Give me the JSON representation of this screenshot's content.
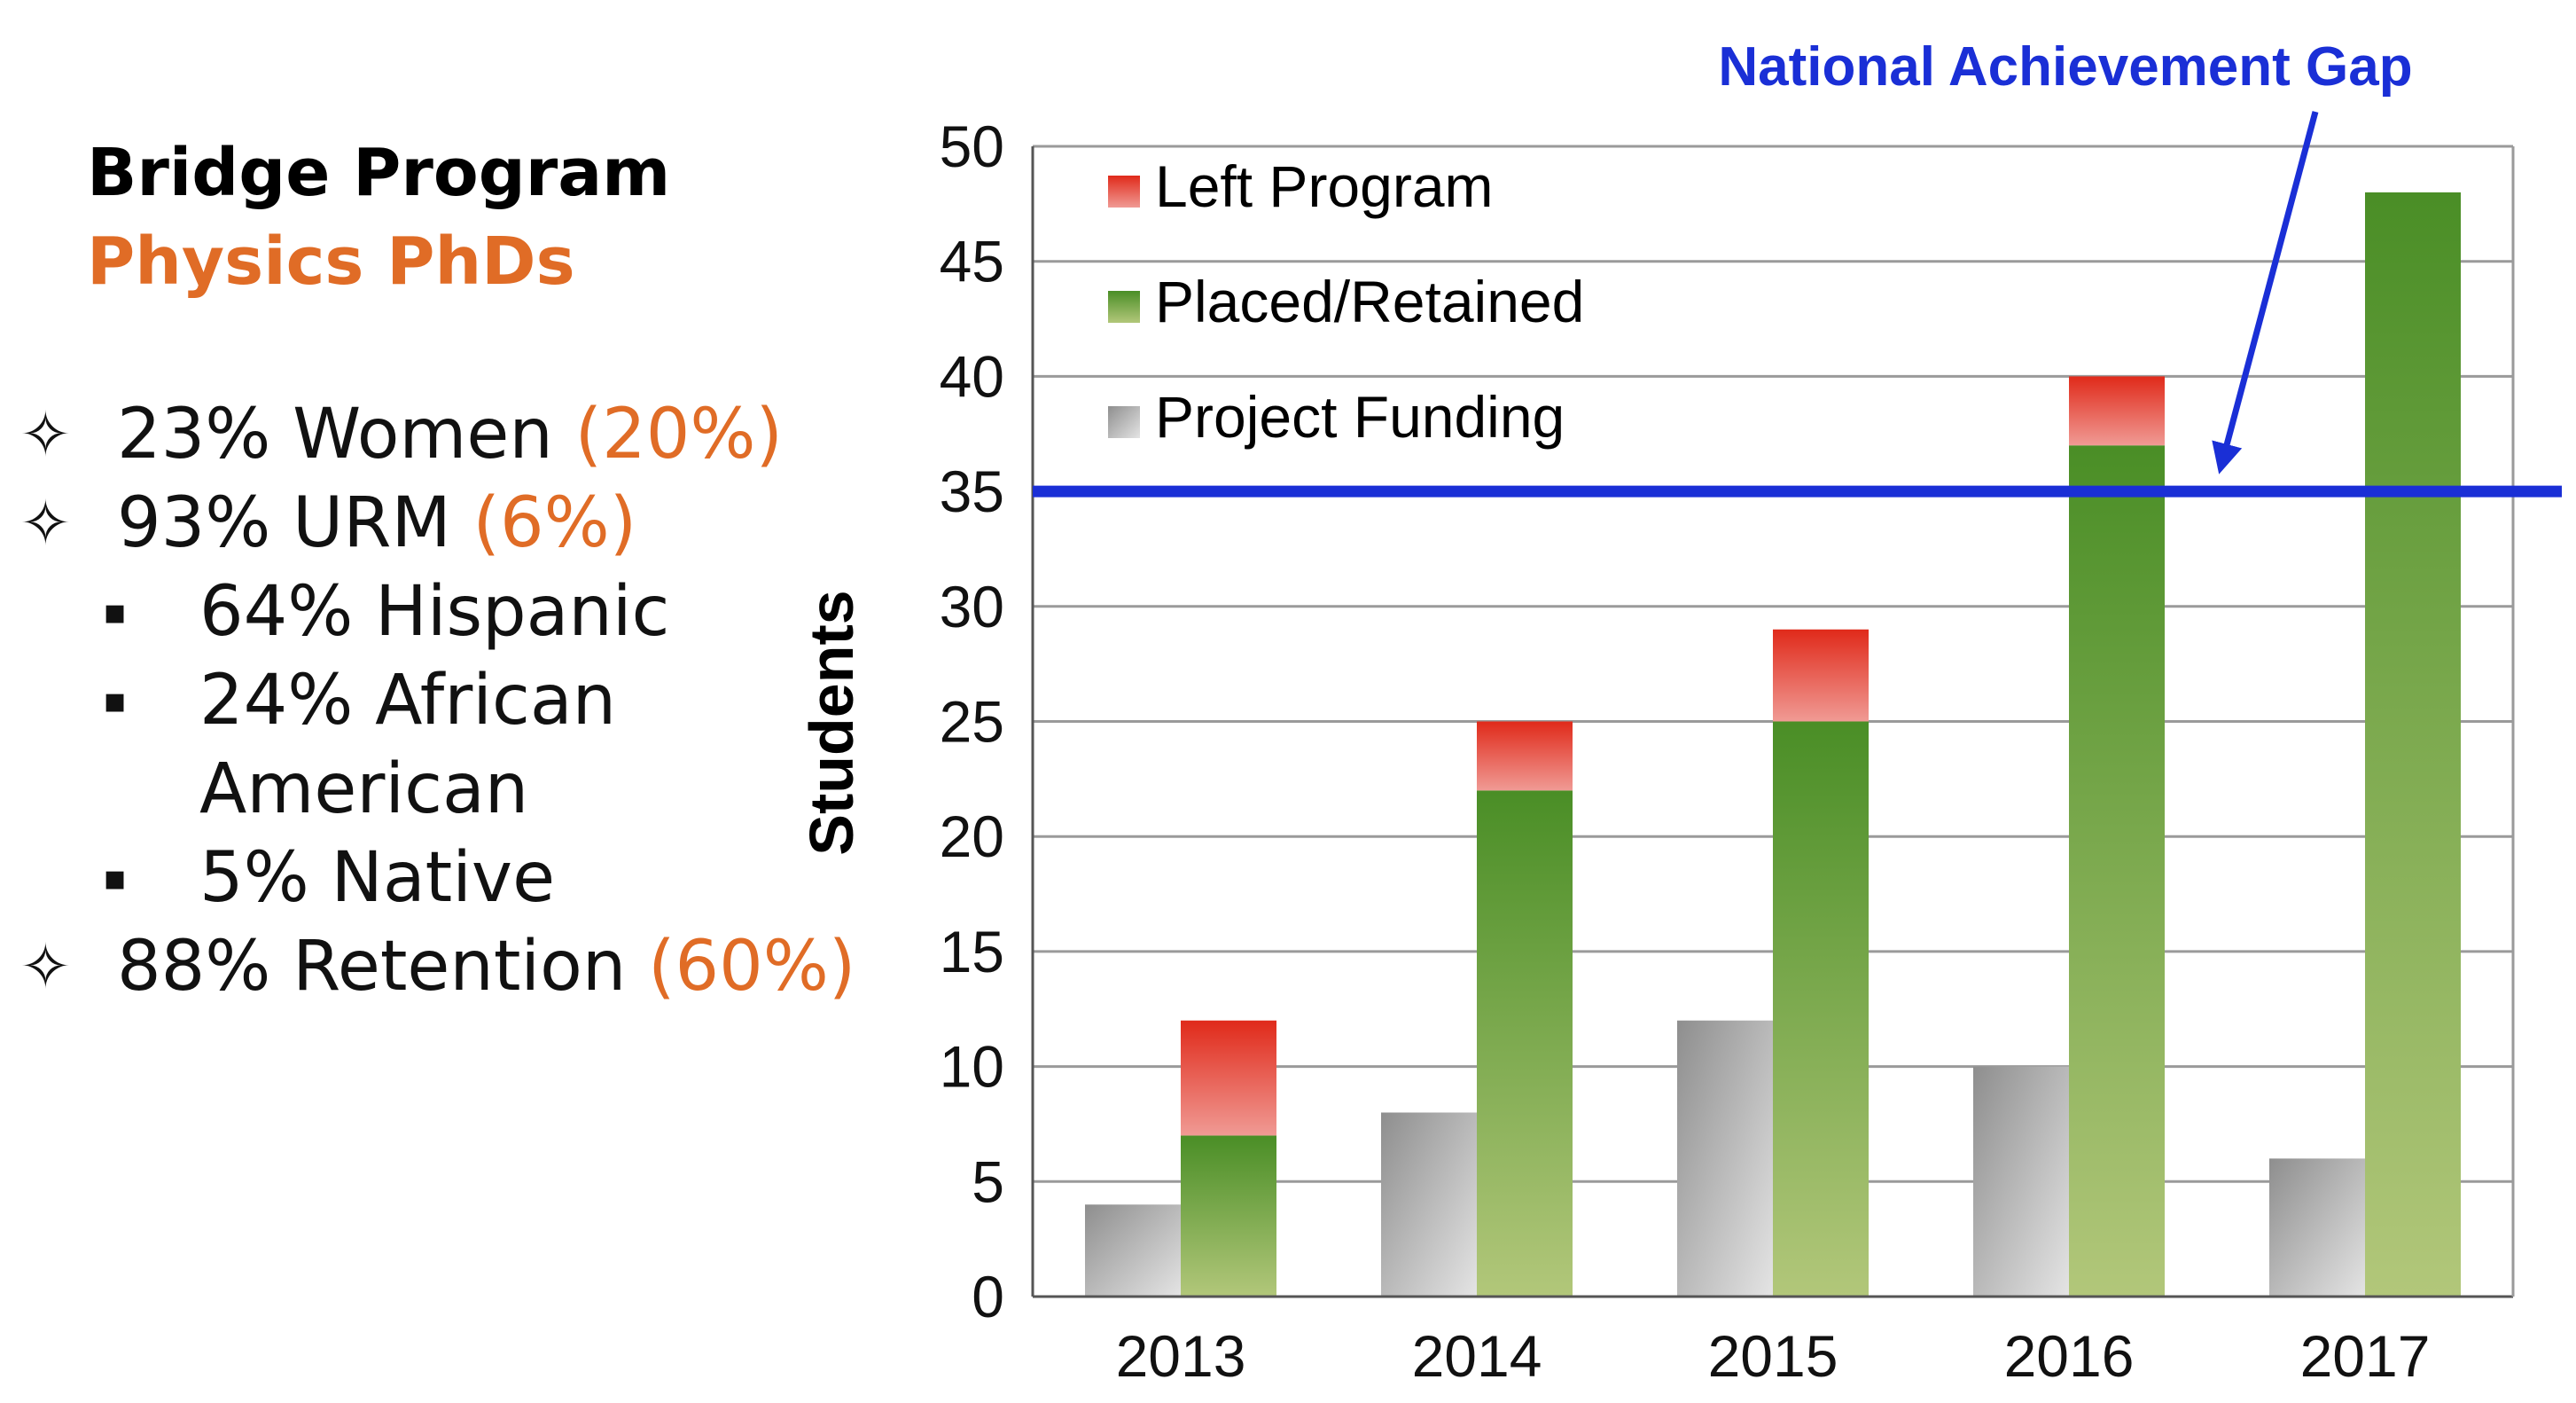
{
  "panel": {
    "title": "Bridge Program",
    "subtitle": "Physics PhDs",
    "bullets": [
      {
        "symbol": "✧",
        "text": "23% Women",
        "paren": "(20%)"
      },
      {
        "symbol": "✧",
        "text": "93% URM",
        "paren": "(6%)"
      },
      {
        "symbol": "▪",
        "text": "64% Hispanic",
        "paren": ""
      },
      {
        "symbol": "▪",
        "text": "24% African",
        "paren": ""
      },
      {
        "symbol": "",
        "text": "American",
        "paren": ""
      },
      {
        "symbol": "▪",
        "text": "5% Native",
        "paren": ""
      },
      {
        "symbol": "✧",
        "text": "88% Retention",
        "paren": "(60%)"
      }
    ]
  },
  "chart_data": {
    "type": "bar",
    "title": "",
    "xlabel": "",
    "ylabel": "Students",
    "ylim": [
      0,
      50
    ],
    "yticks": [
      0,
      5,
      10,
      15,
      20,
      25,
      30,
      35,
      40,
      45,
      50
    ],
    "grid": true,
    "categories": [
      "2013",
      "2014",
      "2015",
      "2016",
      "2017"
    ],
    "series": [
      {
        "name": "Project Funding",
        "values": [
          4,
          8,
          12,
          10,
          6
        ],
        "stack": "a"
      },
      {
        "name": "Placed/Retained",
        "values": [
          7,
          22,
          25,
          37,
          48
        ],
        "stack": "b"
      },
      {
        "name": "Left Program",
        "values": [
          5,
          3,
          4,
          3,
          0
        ],
        "stack": "b"
      }
    ],
    "legend": [
      "Left Program",
      "Placed/Retained",
      "Project Funding"
    ],
    "legend_position": "top-left",
    "reference_line": {
      "label": "National Achievement Gap",
      "value": 35
    }
  },
  "colors": {
    "red": "#e02a1a",
    "green": "#4a8e26",
    "grey": "#9a9a9a",
    "gap": "#1a2fd6",
    "orange": "#e06c26"
  }
}
